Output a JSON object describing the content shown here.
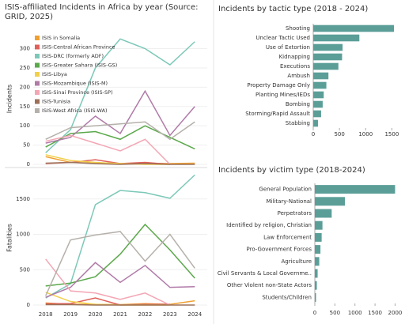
{
  "chart_data": [
    {
      "type": "line",
      "title": "ISIS-affiliated Incidents in Africa by year (Source: GRID, 2025)",
      "ylabel": "Incidents",
      "ylim": [
        0,
        340
      ],
      "yticks": [
        0,
        50,
        100,
        150,
        200,
        250,
        300
      ],
      "grid": true,
      "legend": "top-left",
      "series": [
        {
          "name": "ISIS in Somalia",
          "color": "#f0a030",
          "values": [
            20,
            5,
            3,
            2,
            3,
            2,
            3
          ]
        },
        {
          "name": "ISIS-Central African Province",
          "color": "#e0605a",
          "values": [
            2,
            5,
            12,
            2,
            5,
            0,
            null
          ]
        },
        {
          "name": "ISIS-DRC (formerly ADF)",
          "color": "#7cc8b8",
          "values": [
            30,
            90,
            250,
            325,
            300,
            258,
            318
          ]
        },
        {
          "name": "ISIS-Greater Sahara (ISIS-GS)",
          "color": "#5aa84a",
          "values": [
            45,
            80,
            85,
            65,
            100,
            70,
            40
          ]
        },
        {
          "name": "ISIS-Libya",
          "color": "#f2d04a",
          "values": [
            25,
            10,
            5,
            2,
            0,
            0,
            null
          ]
        },
        {
          "name": "ISIS-Mozambique (ISIS-M)",
          "color": "#b07aa8",
          "values": [
            55,
            70,
            125,
            80,
            190,
            75,
            150
          ]
        },
        {
          "name": "ISIS-Sinai Province (ISIS-SP)",
          "color": "#f4a6b4",
          "values": [
            60,
            75,
            55,
            35,
            65,
            0,
            null
          ]
        },
        {
          "name": "ISIS-Tunisia",
          "color": "#9c7058",
          "values": [
            3,
            5,
            2,
            0,
            2,
            0,
            0
          ]
        },
        {
          "name": "ISIS-West Africa (ISIS-WA)",
          "color": "#b5b0aa",
          "values": [
            65,
            95,
            100,
            105,
            110,
            65,
            110
          ]
        }
      ]
    },
    {
      "type": "line",
      "ylabel": "Fatalities",
      "x": [
        2018,
        2019,
        2020,
        2021,
        2022,
        2023,
        2024
      ],
      "xlim": [
        2017.5,
        2024.5
      ],
      "ylim": [
        0,
        1900
      ],
      "yticks": [
        0,
        500,
        1000,
        1500
      ],
      "grid": true,
      "series": [
        {
          "color": "#f0a030",
          "values": [
            30,
            10,
            10,
            5,
            20,
            10,
            60
          ]
        },
        {
          "color": "#e0605a",
          "values": [
            20,
            20,
            100,
            0,
            10,
            10,
            null
          ]
        },
        {
          "color": "#7cc8b8",
          "values": [
            100,
            300,
            1420,
            1620,
            1590,
            1510,
            1840
          ]
        },
        {
          "color": "#5aa84a",
          "values": [
            270,
            310,
            400,
            720,
            1140,
            780,
            380
          ]
        },
        {
          "color": "#f2d04a",
          "values": [
            180,
            50,
            10,
            0,
            0,
            0,
            null
          ]
        },
        {
          "color": "#b07aa8",
          "values": [
            110,
            250,
            600,
            320,
            560,
            250,
            260
          ]
        },
        {
          "color": "#f4a6b4",
          "values": [
            650,
            200,
            170,
            80,
            170,
            0,
            null
          ]
        },
        {
          "color": "#9c7058",
          "values": [
            5,
            5,
            0,
            0,
            0,
            0,
            0
          ]
        },
        {
          "color": "#b5b0aa",
          "values": [
            130,
            920,
            990,
            1040,
            620,
            1000,
            520
          ]
        }
      ]
    },
    {
      "type": "bar",
      "orientation": "horizontal",
      "title": "Incidents by tactic type (2018 - 2024)",
      "color": "#5b9e98",
      "categories": [
        "Shooting",
        "Unclear Tactic Used",
        "Use of Extortion",
        "Kidnapping",
        "Executions",
        "Ambush",
        "Property Damage Only",
        "Planting Mines/IEDs",
        "Bombing",
        "Storming/Rapid Assault",
        "Stabbing"
      ],
      "values": [
        1540,
        880,
        560,
        550,
        480,
        290,
        250,
        200,
        180,
        150,
        90
      ],
      "xlim": [
        0,
        1600
      ],
      "xticks": [
        0,
        500,
        1000,
        1500
      ]
    },
    {
      "type": "bar",
      "orientation": "horizontal",
      "title": "Incidents by victim type (2018-2024)",
      "color": "#5b9e98",
      "categories": [
        "General Population",
        "Military-National",
        "Perpetrators",
        "Identified by religion, Christian",
        "Law Enforcement",
        "Pro-Government Forces",
        "Agriculture",
        "Civil Servants & Local Governme..",
        "Other Violent non-State Actors",
        "Students/Children"
      ],
      "values": [
        2000,
        750,
        420,
        190,
        170,
        140,
        110,
        70,
        50,
        30
      ],
      "xlim": [
        0,
        2050
      ],
      "xticks": [
        0,
        500,
        1000,
        1500,
        2000
      ]
    }
  ]
}
